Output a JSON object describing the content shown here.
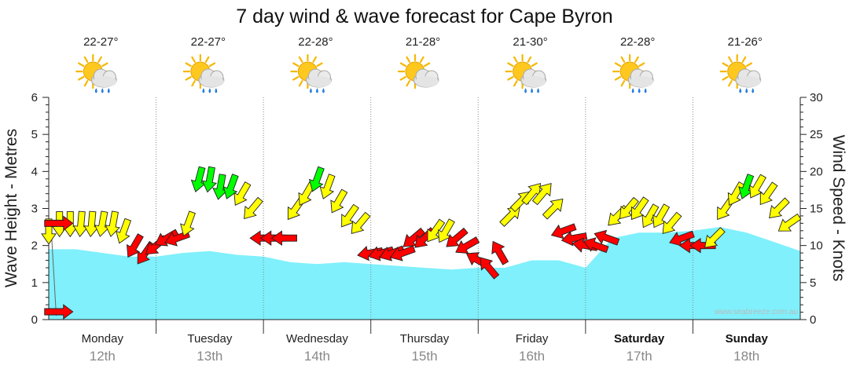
{
  "chart_data": {
    "type": "line",
    "title": "7 day wind & wave forecast for Cape Byron",
    "ylabel_left": "Wave Height - Metres",
    "ylabel_right": "Wind Speed - Knots",
    "ylim_left": [
      0,
      6
    ],
    "ylim_right": [
      0,
      30
    ],
    "yticks_left": [
      "0",
      "1",
      "2",
      "3",
      "4",
      "5",
      "6"
    ],
    "yticks_right": [
      "0",
      "5",
      "10",
      "15",
      "20",
      "25",
      "30"
    ],
    "grid": true,
    "days": [
      {
        "name": "Monday",
        "date": "12th",
        "temp": "22-27°",
        "bold": false,
        "icon": "partly-cloudy-rain-icon"
      },
      {
        "name": "Tuesday",
        "date": "13th",
        "temp": "22-27°",
        "bold": false,
        "icon": "partly-cloudy-rain-icon"
      },
      {
        "name": "Wednesday",
        "date": "14th",
        "temp": "22-28°",
        "bold": false,
        "icon": "partly-cloudy-rain-icon"
      },
      {
        "name": "Thursday",
        "date": "15th",
        "temp": "21-28°",
        "bold": false,
        "icon": "partly-cloudy-icon"
      },
      {
        "name": "Friday",
        "date": "16th",
        "temp": "21-30°",
        "bold": false,
        "icon": "partly-cloudy-rain-icon"
      },
      {
        "name": "Saturday",
        "date": "17th",
        "temp": "22-28°",
        "bold": true,
        "icon": "partly-cloudy-rain-icon"
      },
      {
        "name": "Sunday",
        "date": "18th",
        "temp": "21-26°",
        "bold": true,
        "icon": "partly-cloudy-rain-icon"
      }
    ],
    "series": [
      {
        "name": "Wave Height",
        "unit": "m",
        "color": "#7ff0fc",
        "x_days": [
          0,
          0.25,
          0.5,
          0.75,
          1,
          1.25,
          1.5,
          1.75,
          2,
          2.25,
          2.5,
          2.75,
          3,
          3.25,
          3.5,
          3.75,
          4,
          4.25,
          4.5,
          4.75,
          5,
          5.25,
          5.5,
          5.75,
          6,
          6.25,
          6.5,
          6.75,
          7
        ],
        "values": [
          1.9,
          1.9,
          1.8,
          1.7,
          1.7,
          1.8,
          1.85,
          1.75,
          1.7,
          1.55,
          1.5,
          1.55,
          1.5,
          1.45,
          1.4,
          1.35,
          1.4,
          1.4,
          1.6,
          1.6,
          1.4,
          2.2,
          2.35,
          2.35,
          2.4,
          2.5,
          2.35,
          2.1,
          1.85
        ]
      },
      {
        "name": "Wind Speed",
        "unit": "knots",
        "x_days": [
          0,
          0.1,
          0.2,
          0.3,
          0.4,
          0.5,
          0.6,
          0.7,
          0.8,
          0.9,
          1,
          1.1,
          1.2,
          1.3,
          1.4,
          1.5,
          1.6,
          1.7,
          1.8,
          1.9,
          2,
          2.1,
          2.2,
          2.3,
          2.4,
          2.5,
          2.6,
          2.7,
          2.8,
          2.9,
          3,
          3.1,
          3.2,
          3.3,
          3.4,
          3.5,
          3.6,
          3.7,
          3.8,
          3.9,
          4,
          4.1,
          4.2,
          4.3,
          4.4,
          4.5,
          4.6,
          4.7,
          4.8,
          4.9,
          5,
          5.1,
          5.2,
          5.3,
          5.4,
          5.5,
          5.6,
          5.7,
          5.8,
          5.9,
          6,
          6.1,
          6.2,
          6.3,
          6.4,
          6.5,
          6.6,
          6.7,
          6.8,
          6.9
        ],
        "values": [
          12,
          13,
          13,
          13,
          13,
          13,
          13,
          12,
          10,
          9,
          10,
          11,
          11,
          13,
          19,
          19,
          18,
          18,
          17,
          15,
          11,
          11,
          11,
          15,
          17,
          19,
          18,
          16,
          14,
          13,
          9,
          9,
          9,
          9,
          11,
          11,
          12,
          12,
          11,
          10,
          8,
          7,
          9,
          14,
          16,
          17,
          17,
          15,
          12,
          11,
          10,
          10,
          11,
          14,
          15,
          15,
          14,
          14,
          13,
          11,
          10,
          10,
          11,
          15,
          17,
          18,
          18,
          17,
          15,
          13
        ],
        "colors": [
          "#ff0",
          "#ff0",
          "#ff0",
          "#ff0",
          "#ff0",
          "#ff0",
          "#ff0",
          "#ff0",
          "#f00",
          "#f00",
          "#f00",
          "#f00",
          "#f00",
          "#ff0",
          "#0f0",
          "#0f0",
          "#0f0",
          "#0f0",
          "#ff0",
          "#ff0",
          "#f00",
          "#f00",
          "#f00",
          "#ff0",
          "#ff0",
          "#0f0",
          "#ff0",
          "#ff0",
          "#ff0",
          "#ff0",
          "#f00",
          "#f00",
          "#f00",
          "#f00",
          "#f00",
          "#f00",
          "#ff0",
          "#ff0",
          "#f00",
          "#f00",
          "#f00",
          "#f00",
          "#f00",
          "#ff0",
          "#ff0",
          "#ff0",
          "#ff0",
          "#ff0",
          "#f00",
          "#f00",
          "#f00",
          "#f00",
          "#f00",
          "#ff0",
          "#ff0",
          "#ff0",
          "#ff0",
          "#ff0",
          "#ff0",
          "#f00",
          "#f00",
          "#f00",
          "#ff0",
          "#ff0",
          "#ff0",
          "#0f0",
          "#ff0",
          "#ff0",
          "#ff0",
          "#ff0"
        ],
        "directions_deg": [
          180,
          180,
          180,
          185,
          185,
          190,
          190,
          200,
          210,
          215,
          230,
          240,
          250,
          200,
          195,
          190,
          190,
          200,
          210,
          220,
          270,
          270,
          270,
          215,
          210,
          200,
          200,
          210,
          215,
          220,
          260,
          255,
          250,
          250,
          230,
          225,
          215,
          210,
          230,
          240,
          300,
          320,
          330,
          45,
          45,
          40,
          40,
          45,
          250,
          260,
          280,
          290,
          290,
          225,
          220,
          215,
          210,
          210,
          220,
          250,
          270,
          270,
          225,
          215,
          210,
          200,
          210,
          215,
          225,
          235
        ]
      }
    ],
    "markers": [
      {
        "day_x": 0.02,
        "y_knots": 13,
        "color": "#f00"
      },
      {
        "day_x": 0.02,
        "y_knots": 0,
        "color": "#f00"
      }
    ],
    "watermark": "www.seabreeze.com.au"
  }
}
